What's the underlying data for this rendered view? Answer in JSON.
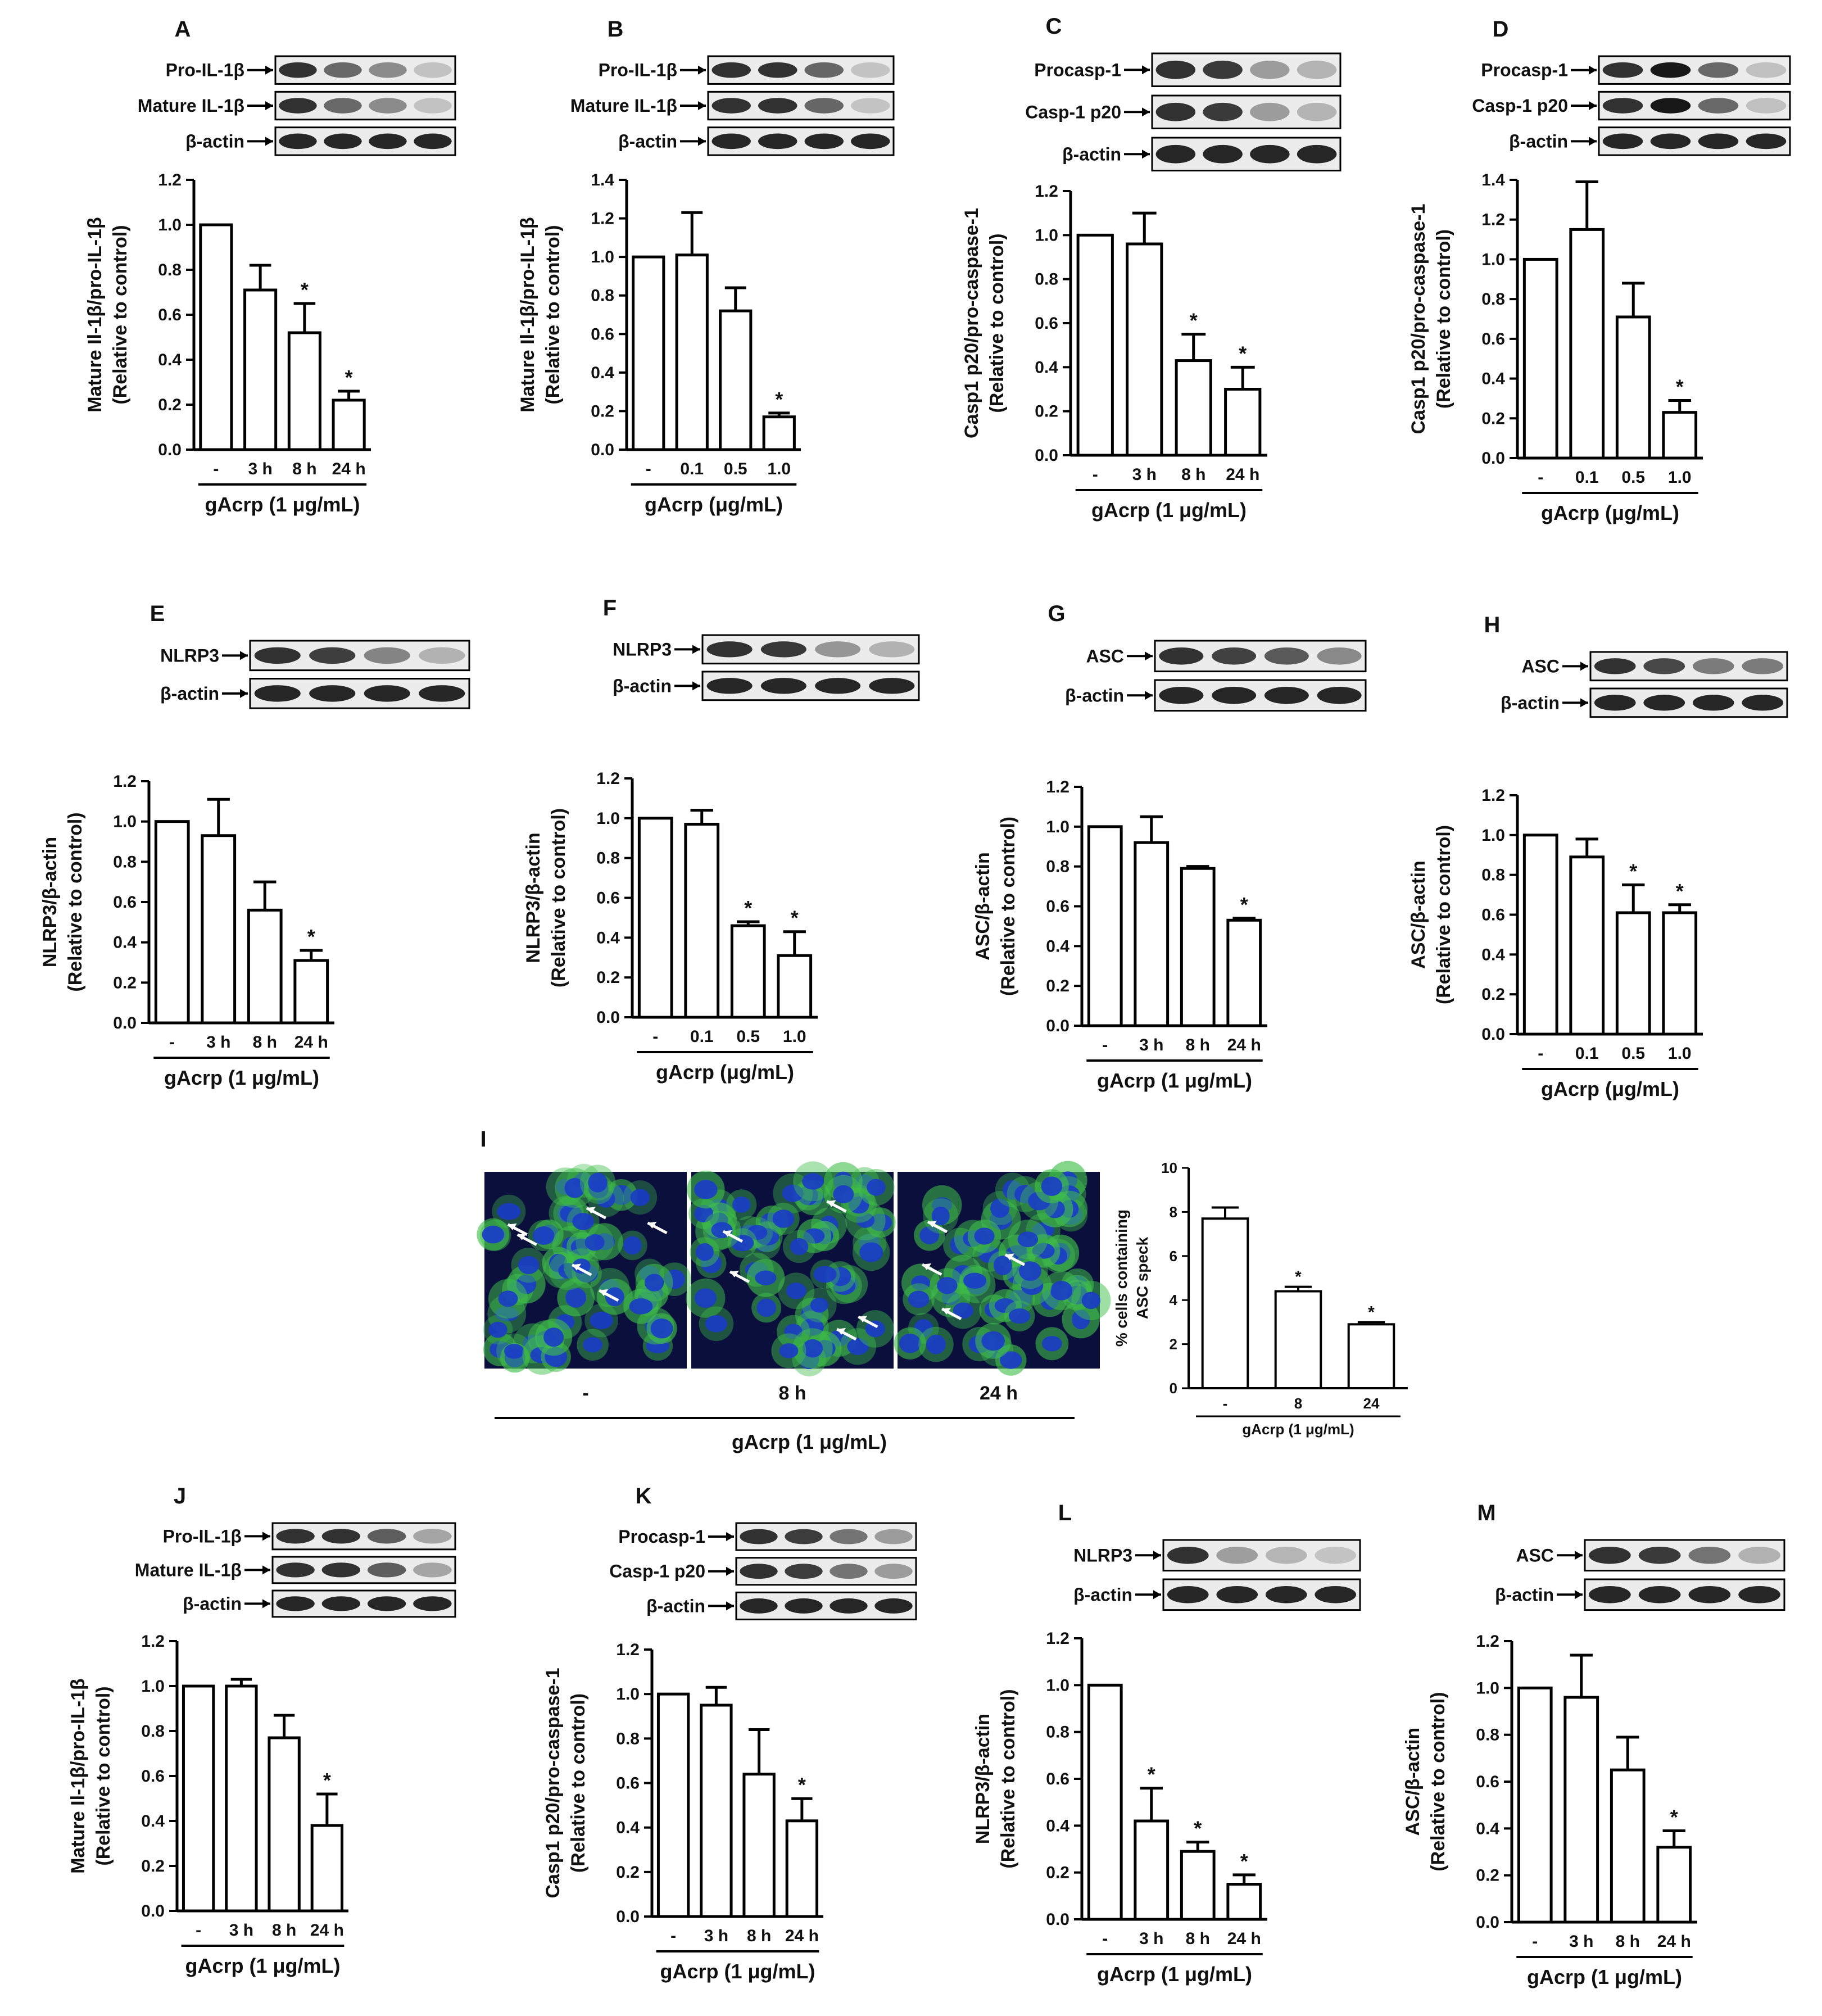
{
  "panels": [
    {
      "letter": "A",
      "xcats": [
        "-",
        "3 h",
        "8 h",
        "24 h"
      ],
      "values": [
        1.0,
        0.71,
        0.52,
        0.22
      ],
      "errors": [
        0,
        0.11,
        0.13,
        0.04
      ],
      "sig": [
        false,
        false,
        true,
        true
      ],
      "ylabel1": "Mature Il-1β/pro-IL-1β",
      "ylabel2": "(Relative to control)",
      "xlabel": "gAcrp (1 μg/mL)",
      "ymax": 1.2,
      "ticks": [
        "0.0",
        "0.2",
        "0.4",
        "0.6",
        "0.8",
        "1.0",
        "1.2"
      ],
      "blots": [
        "Pro-IL-1β",
        "Mature IL-1β",
        "β-actin"
      ]
    },
    {
      "letter": "B",
      "xcats": [
        "-",
        "0.1",
        "0.5",
        "1.0"
      ],
      "values": [
        1.0,
        1.01,
        0.72,
        0.17
      ],
      "errors": [
        0,
        0.22,
        0.12,
        0.02
      ],
      "sig": [
        false,
        false,
        false,
        true
      ],
      "ylabel1": "Mature Il-1β/pro-IL-1β",
      "ylabel2": "(Relative to control)",
      "xlabel": "gAcrp (μg/mL)",
      "ymax": 1.4,
      "ticks": [
        "0.0",
        "0.2",
        "0.4",
        "0.6",
        "0.8",
        "1.0",
        "1.2",
        "1.4"
      ],
      "blots": [
        "Pro-IL-1β",
        "Mature IL-1β",
        "β-actin"
      ]
    },
    {
      "letter": "C",
      "xcats": [
        "-",
        "3 h",
        "8 h",
        "24 h"
      ],
      "values": [
        1.0,
        0.96,
        0.43,
        0.3
      ],
      "errors": [
        0,
        0.14,
        0.12,
        0.1
      ],
      "sig": [
        false,
        false,
        true,
        true
      ],
      "ylabel1": "Casp1 p20/pro-caspase-1",
      "ylabel2": "(Relative to control)",
      "xlabel": "gAcrp (1 μg/mL)",
      "ymax": 1.2,
      "ticks": [
        "0.0",
        "0.2",
        "0.4",
        "0.6",
        "0.8",
        "1.0",
        "1.2"
      ],
      "blots": [
        "Procasp-1",
        "Casp-1 p20",
        "β-actin"
      ]
    },
    {
      "letter": "D",
      "xcats": [
        "-",
        "0.1",
        "0.5",
        "1.0"
      ],
      "values": [
        1.0,
        1.15,
        0.71,
        0.23
      ],
      "errors": [
        0,
        0.24,
        0.17,
        0.06
      ],
      "sig": [
        false,
        false,
        false,
        true
      ],
      "ylabel1": "Casp1 p20/pro-caspase-1",
      "ylabel2": "(Relative to control)",
      "xlabel": "gAcrp (μg/mL)",
      "ymax": 1.4,
      "ticks": [
        "0.0",
        "0.2",
        "0.4",
        "0.6",
        "0.8",
        "1.0",
        "1.2",
        "1.4"
      ],
      "blots": [
        "Procasp-1",
        "Casp-1 p20",
        "β-actin"
      ]
    },
    {
      "letter": "E",
      "xcats": [
        "-",
        "3 h",
        "8 h",
        "24 h"
      ],
      "values": [
        1.0,
        0.93,
        0.56,
        0.31
      ],
      "errors": [
        0,
        0.18,
        0.14,
        0.05
      ],
      "sig": [
        false,
        false,
        false,
        true
      ],
      "ylabel1": "NLRP3/β-actin",
      "ylabel2": "(Relative to control)",
      "xlabel": "gAcrp (1 μg/mL)",
      "ymax": 1.2,
      "ticks": [
        "0.0",
        "0.2",
        "0.4",
        "0.6",
        "0.8",
        "1.0",
        "1.2"
      ],
      "blots": [
        "NLRP3",
        "β-actin"
      ]
    },
    {
      "letter": "F",
      "xcats": [
        "-",
        "0.1",
        "0.5",
        "1.0"
      ],
      "values": [
        1.0,
        0.97,
        0.46,
        0.31
      ],
      "errors": [
        0,
        0.07,
        0.02,
        0.12
      ],
      "sig": [
        false,
        false,
        true,
        true
      ],
      "ylabel1": "NLRP3/β-actin",
      "ylabel2": "(Relative to control)",
      "xlabel": "gAcrp (μg/mL)",
      "ymax": 1.2,
      "ticks": [
        "0.0",
        "0.2",
        "0.4",
        "0.6",
        "0.8",
        "1.0",
        "1.2"
      ],
      "blots": [
        "NLRP3",
        "β-actin"
      ]
    },
    {
      "letter": "G",
      "xcats": [
        "-",
        "3 h",
        "8 h",
        "24 h"
      ],
      "values": [
        1.0,
        0.92,
        0.79,
        0.53
      ],
      "errors": [
        0,
        0.13,
        0.01,
        0.01
      ],
      "sig": [
        false,
        false,
        false,
        true
      ],
      "ylabel1": "ASC/β-actin",
      "ylabel2": "(Relative to control)",
      "xlabel": "gAcrp (1 μg/mL)",
      "ymax": 1.2,
      "ticks": [
        "0.0",
        "0.2",
        "0.4",
        "0.6",
        "0.8",
        "1.0",
        "1.2"
      ],
      "blots": [
        "ASC",
        "β-actin"
      ]
    },
    {
      "letter": "H",
      "xcats": [
        "-",
        "0.1",
        "0.5",
        "1.0"
      ],
      "values": [
        1.0,
        0.89,
        0.61,
        0.61
      ],
      "errors": [
        0,
        0.09,
        0.14,
        0.04
      ],
      "sig": [
        false,
        false,
        true,
        true
      ],
      "ylabel1": "ASC/β-actin",
      "ylabel2": "(Relative to control)",
      "xlabel": "gAcrp (μg/mL)",
      "ymax": 1.2,
      "ticks": [
        "0.0",
        "0.2",
        "0.4",
        "0.6",
        "0.8",
        "1.0",
        "1.2"
      ],
      "blots": [
        "ASC",
        "β-actin"
      ]
    },
    {
      "letter": "J",
      "xcats": [
        "-",
        "3 h",
        "8 h",
        "24 h"
      ],
      "values": [
        1.0,
        1.0,
        0.77,
        0.38
      ],
      "errors": [
        0,
        0.03,
        0.1,
        0.14
      ],
      "sig": [
        false,
        false,
        false,
        true
      ],
      "ylabel1": "Mature Il-1β/pro-IL-1β",
      "ylabel2": "(Relative to control)",
      "xlabel": "gAcrp (1 μg/mL)",
      "ymax": 1.2,
      "ticks": [
        "0.0",
        "0.2",
        "0.4",
        "0.6",
        "0.8",
        "1.0",
        "1.2"
      ],
      "blots": [
        "Pro-IL-1β",
        "Mature IL-1β",
        "β-actin"
      ]
    },
    {
      "letter": "K",
      "xcats": [
        "-",
        "3 h",
        "8 h",
        "24 h"
      ],
      "values": [
        1.0,
        0.95,
        0.64,
        0.43
      ],
      "errors": [
        0,
        0.08,
        0.2,
        0.1
      ],
      "sig": [
        false,
        false,
        false,
        true
      ],
      "ylabel1": "Casp1 p20/pro-caspase-1",
      "ylabel2": "(Relative to control)",
      "xlabel": "gAcrp (1 μg/mL)",
      "ymax": 1.2,
      "ticks": [
        "0.0",
        "0.2",
        "0.4",
        "0.6",
        "0.8",
        "1.0",
        "1.2"
      ],
      "blots": [
        "Procasp-1",
        "Casp-1 p20",
        "β-actin"
      ]
    },
    {
      "letter": "L",
      "xcats": [
        "-",
        "3 h",
        "8 h",
        "24 h"
      ],
      "values": [
        1.0,
        0.42,
        0.29,
        0.15
      ],
      "errors": [
        0,
        0.14,
        0.04,
        0.04
      ],
      "sig": [
        false,
        true,
        true,
        true
      ],
      "ylabel1": "NLRP3/β-actin",
      "ylabel2": "(Relative to control)",
      "xlabel": "gAcrp (1 μg/mL)",
      "ymax": 1.2,
      "ticks": [
        "0.0",
        "0.2",
        "0.4",
        "0.6",
        "0.8",
        "1.0",
        "1.2"
      ],
      "blots": [
        "NLRP3",
        "β-actin"
      ]
    },
    {
      "letter": "M",
      "xcats": [
        "-",
        "3 h",
        "8 h",
        "24 h"
      ],
      "values": [
        1.0,
        0.96,
        0.65,
        0.32
      ],
      "errors": [
        0,
        0.18,
        0.14,
        0.07
      ],
      "sig": [
        false,
        false,
        false,
        true
      ],
      "ylabel1": "ASC/β-actin",
      "ylabel2": "(Relative to control)",
      "xlabel": "gAcrp (1 μg/mL)",
      "ymax": 1.2,
      "ticks": [
        "0.0",
        "0.2",
        "0.4",
        "0.6",
        "0.8",
        "1.0",
        "1.2"
      ],
      "blots": [
        "ASC",
        "β-actin"
      ]
    }
  ],
  "panelI": {
    "letter": "I",
    "image_labels": [
      "-",
      "8 h",
      "24 h"
    ],
    "image_group_label": "gAcrp (1 μg/mL)",
    "xcats": [
      "-",
      "8",
      "24"
    ],
    "values": [
      7.7,
      4.4,
      2.9
    ],
    "errors": [
      0.5,
      0.2,
      0.1
    ],
    "sig": [
      false,
      true,
      true
    ],
    "ylabel1": "% cells containing",
    "ylabel2": "ASC speck",
    "xlabel": "gAcrp (1 μg/mL)",
    "ymax": 10,
    "ticks": [
      "0",
      "2",
      "4",
      "6",
      "8",
      "10"
    ]
  },
  "colors": {
    "bar_fill": "#ffffff",
    "bar_stroke": "#000000",
    "nucleus": "#1a3cc8",
    "cytoplasm": "#3fbf4a"
  },
  "chart_data": [
    {
      "type": "bar",
      "panel": "A",
      "categories": [
        "-",
        "3 h",
        "8 h",
        "24 h"
      ],
      "values": [
        1.0,
        0.71,
        0.52,
        0.22
      ],
      "ylabel": "Mature Il-1β/pro-IL-1β (Relative to control)",
      "xlabel": "gAcrp (1 μg/mL)",
      "ylim": [
        0,
        1.2
      ]
    },
    {
      "type": "bar",
      "panel": "B",
      "categories": [
        "-",
        "0.1",
        "0.5",
        "1.0"
      ],
      "values": [
        1.0,
        1.01,
        0.72,
        0.17
      ],
      "ylabel": "Mature Il-1β/pro-IL-1β (Relative to control)",
      "xlabel": "gAcrp (μg/mL)",
      "ylim": [
        0,
        1.4
      ]
    },
    {
      "type": "bar",
      "panel": "C",
      "categories": [
        "-",
        "3 h",
        "8 h",
        "24 h"
      ],
      "values": [
        1.0,
        0.96,
        0.43,
        0.3
      ],
      "ylabel": "Casp1 p20/pro-caspase-1 (Relative to control)",
      "xlabel": "gAcrp (1 μg/mL)",
      "ylim": [
        0,
        1.2
      ]
    },
    {
      "type": "bar",
      "panel": "D",
      "categories": [
        "-",
        "0.1",
        "0.5",
        "1.0"
      ],
      "values": [
        1.0,
        1.15,
        0.71,
        0.23
      ],
      "ylabel": "Casp1 p20/pro-caspase-1 (Relative to control)",
      "xlabel": "gAcrp (μg/mL)",
      "ylim": [
        0,
        1.4
      ]
    },
    {
      "type": "bar",
      "panel": "E",
      "categories": [
        "-",
        "3 h",
        "8 h",
        "24 h"
      ],
      "values": [
        1.0,
        0.93,
        0.56,
        0.31
      ],
      "ylabel": "NLRP3/β-actin (Relative to control)",
      "xlabel": "gAcrp (1 μg/mL)",
      "ylim": [
        0,
        1.2
      ]
    },
    {
      "type": "bar",
      "panel": "F",
      "categories": [
        "-",
        "0.1",
        "0.5",
        "1.0"
      ],
      "values": [
        1.0,
        0.97,
        0.46,
        0.31
      ],
      "ylabel": "NLRP3/β-actin (Relative to control)",
      "xlabel": "gAcrp (μg/mL)",
      "ylim": [
        0,
        1.2
      ]
    },
    {
      "type": "bar",
      "panel": "G",
      "categories": [
        "-",
        "3 h",
        "8 h",
        "24 h"
      ],
      "values": [
        1.0,
        0.92,
        0.79,
        0.53
      ],
      "ylabel": "ASC/β-actin (Relative to control)",
      "xlabel": "gAcrp (1 μg/mL)",
      "ylim": [
        0,
        1.2
      ]
    },
    {
      "type": "bar",
      "panel": "H",
      "categories": [
        "-",
        "0.1",
        "0.5",
        "1.0"
      ],
      "values": [
        1.0,
        0.89,
        0.61,
        0.61
      ],
      "ylabel": "ASC/β-actin (Relative to control)",
      "xlabel": "gAcrp (μg/mL)",
      "ylim": [
        0,
        1.2
      ]
    },
    {
      "type": "bar",
      "panel": "I",
      "categories": [
        "-",
        "8",
        "24"
      ],
      "values": [
        7.7,
        4.4,
        2.9
      ],
      "ylabel": "% cells containing ASC speck",
      "xlabel": "gAcrp (1 μg/mL)",
      "ylim": [
        0,
        10
      ]
    },
    {
      "type": "bar",
      "panel": "J",
      "categories": [
        "-",
        "3 h",
        "8 h",
        "24 h"
      ],
      "values": [
        1.0,
        1.0,
        0.77,
        0.38
      ],
      "ylabel": "Mature Il-1β/pro-IL-1β (Relative to control)",
      "xlabel": "gAcrp (1 μg/mL)",
      "ylim": [
        0,
        1.2
      ]
    },
    {
      "type": "bar",
      "panel": "K",
      "categories": [
        "-",
        "3 h",
        "8 h",
        "24 h"
      ],
      "values": [
        1.0,
        0.95,
        0.64,
        0.43
      ],
      "ylabel": "Casp1 p20/pro-caspase-1 (Relative to control)",
      "xlabel": "gAcrp (1 μg/mL)",
      "ylim": [
        0,
        1.2
      ]
    },
    {
      "type": "bar",
      "panel": "L",
      "categories": [
        "-",
        "3 h",
        "8 h",
        "24 h"
      ],
      "values": [
        1.0,
        0.42,
        0.29,
        0.15
      ],
      "ylabel": "NLRP3/β-actin (Relative to control)",
      "xlabel": "gAcrp (1 μg/mL)",
      "ylim": [
        0,
        1.2
      ]
    },
    {
      "type": "bar",
      "panel": "M",
      "categories": [
        "-",
        "3 h",
        "8 h",
        "24 h"
      ],
      "values": [
        1.0,
        0.96,
        0.65,
        0.32
      ],
      "ylabel": "ASC/β-actin (Relative to control)",
      "xlabel": "gAcrp (1 μg/mL)",
      "ylim": [
        0,
        1.2
      ]
    }
  ]
}
